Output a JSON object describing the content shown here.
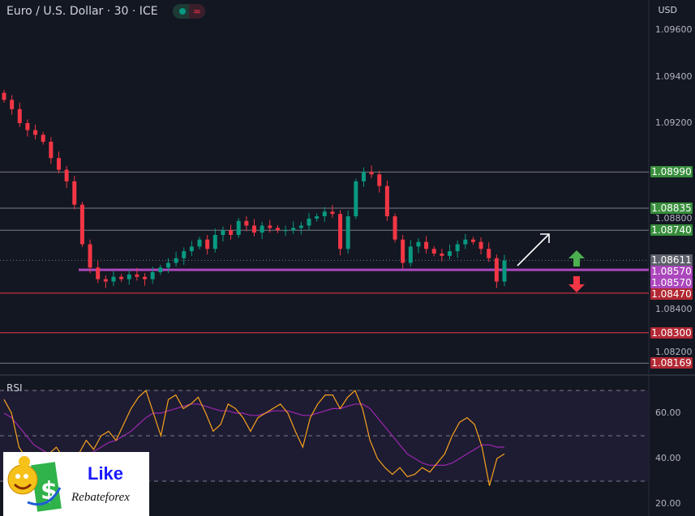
{
  "header": {
    "title": "Euro / U.S. Dollar · 30 · ICE",
    "currency": "USD",
    "status_icon": "market-open-dot",
    "delay_icon": "approx-icon"
  },
  "colors": {
    "up": "#089981",
    "down": "#f23645",
    "green_label": "#388e3c",
    "red_label": "#b22833",
    "purple": "#ab47bc",
    "gray": "#5d606b",
    "rsi": "#f7a21b",
    "rsi_ma": "#9c27b0"
  },
  "chart_data": [
    {
      "type": "candlestick",
      "title": "Euro / U.S. Dollar · 30 · ICE",
      "ylim": [
        1.0812,
        1.0966
      ],
      "y_ticks": [
        "1.09600",
        "1.09400",
        "1.09200",
        "1.08800",
        "1.08400",
        "1.08200"
      ],
      "closes": [
        1.093,
        1.0926,
        1.092,
        1.0917,
        1.0915,
        1.0912,
        1.0905,
        1.09,
        1.0895,
        1.0885,
        1.0868,
        1.0858,
        1.0853,
        1.0852,
        1.0854,
        1.0853,
        1.0855,
        1.0854,
        1.0853,
        1.0856,
        1.0858,
        1.086,
        1.0862,
        1.0865,
        1.0867,
        1.087,
        1.0866,
        1.0872,
        1.0874,
        1.0872,
        1.0878,
        1.0876,
        1.0873,
        1.0876,
        1.0875,
        1.0874,
        1.0874,
        1.0875,
        1.0876,
        1.0879,
        1.088,
        1.0882,
        1.0881,
        1.0866,
        1.088,
        1.0895,
        1.0899,
        1.0898,
        1.0893,
        1.088,
        1.087,
        1.086,
        1.0867,
        1.0869,
        1.0866,
        1.0864,
        1.0863,
        1.0865,
        1.0868,
        1.087,
        1.0869,
        1.0866,
        1.0862,
        1.0852,
        1.0861
      ],
      "levels": [
        {
          "price": "1.08990",
          "line": "#787b86",
          "label_color": "#388e3c"
        },
        {
          "price": "1.08835",
          "line": "#787b86",
          "label_color": "#388e3c"
        },
        {
          "price": "1.08740",
          "line": "#787b86",
          "label_color": "#388e3c"
        },
        {
          "price": "1.08611",
          "line": "dotted",
          "label_color": "#5d606b"
        },
        {
          "price": "1.08570",
          "line": "#ab47bc",
          "label_color": "#ab47bc"
        },
        {
          "price": "1.08570",
          "line": "none",
          "label_color": "#ab47bc"
        },
        {
          "price": "1.08470",
          "line": "#f23645",
          "label_color": "#b22833"
        },
        {
          "price": "1.08300",
          "line": "#f23645",
          "label_color": "#b22833"
        },
        {
          "price": "1.08169",
          "line": "#787b86",
          "label_color": "#b22833"
        }
      ],
      "annotations": [
        "arrow-up-right-white",
        "arrow-up-green",
        "arrow-down-red"
      ]
    },
    {
      "type": "line",
      "title": "RSI",
      "ylim": [
        18,
        72
      ],
      "y_ticks": [
        "60.00",
        "40.00",
        "20.00"
      ],
      "bands": [
        70,
        50,
        30
      ],
      "rsi": [
        66,
        60,
        45,
        40,
        32,
        38,
        42,
        45,
        40,
        38,
        42,
        48,
        44,
        50,
        52,
        48,
        55,
        62,
        67,
        70,
        60,
        50,
        66,
        68,
        62,
        64,
        67,
        60,
        52,
        55,
        64,
        62,
        58,
        52,
        58,
        60,
        62,
        64,
        60,
        52,
        45,
        58,
        64,
        68,
        68,
        62,
        67,
        70,
        62,
        48,
        40,
        36,
        33,
        36,
        32,
        33,
        36,
        34,
        38,
        42,
        50,
        56,
        58,
        55,
        45,
        28,
        40,
        42
      ],
      "rsi_ma": [
        60,
        58,
        54,
        50,
        46,
        44,
        42,
        42,
        40,
        39,
        40,
        42,
        43,
        45,
        47,
        48,
        50,
        52,
        55,
        58,
        60,
        60,
        61,
        62,
        63,
        64,
        64,
        63,
        62,
        61,
        61,
        60,
        60,
        59,
        59,
        60,
        61,
        61,
        61,
        60,
        59,
        59,
        60,
        61,
        62,
        62,
        63,
        64,
        64,
        62,
        58,
        54,
        50,
        46,
        42,
        40,
        38,
        37,
        37,
        37,
        38,
        40,
        42,
        44,
        46,
        46,
        45,
        45
      ]
    }
  ],
  "logo": {
    "line1": "Like",
    "line2": "Rebateforex"
  }
}
